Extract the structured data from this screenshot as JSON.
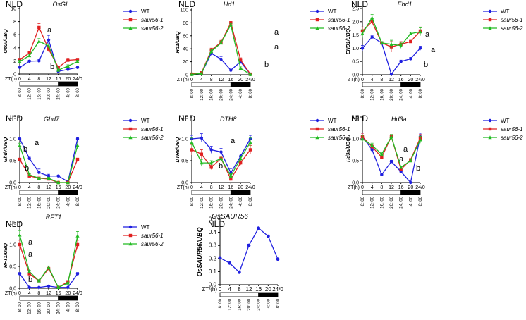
{
  "chart_data": [
    {
      "type": "line",
      "condition": "NLD",
      "title": "OsGI",
      "ylabel": "OsGI/UBQ",
      "ylim": [
        0,
        10
      ],
      "yticks": [
        0,
        2,
        4,
        6,
        8,
        10
      ],
      "x_label": "ZT(h)",
      "x": [
        0,
        4,
        8,
        12,
        16,
        20,
        24
      ],
      "x_tick_labels": [
        "0",
        "4",
        "8",
        "12",
        "16",
        "20",
        "24/0"
      ],
      "clock_labels": [
        "8: 00",
        "12: 00",
        "16: 00",
        "20: 00",
        "24: 00",
        "4: 00",
        "8: 00"
      ],
      "series": [
        {
          "name": "WT",
          "color": "#1f1fe0",
          "marker": "circle",
          "values": [
            1.0,
            1.95,
            2.0,
            5.2,
            0.4,
            0.7,
            1.0
          ],
          "errors": [
            0.1,
            0.15,
            0.2,
            0.7,
            0.1,
            0.1,
            0.1
          ]
        },
        {
          "name": "saur56-1",
          "color": "#e02020",
          "marker": "square",
          "values": [
            2.2,
            3.2,
            7.1,
            3.8,
            1.0,
            2.1,
            2.2
          ],
          "errors": [
            0.2,
            0.2,
            0.6,
            0.4,
            0.1,
            0.3,
            0.2
          ]
        },
        {
          "name": "saur56-2",
          "color": "#22bb22",
          "marker": "triangle",
          "values": [
            1.9,
            2.8,
            5.0,
            4.3,
            0.6,
            1.2,
            1.9
          ],
          "errors": [
            0.2,
            0.2,
            0.4,
            0.3,
            0.1,
            0.2,
            0.2
          ]
        }
      ],
      "annotations": [
        "a",
        "b"
      ]
    },
    {
      "type": "line",
      "condition": "NLD",
      "title": "Hd1",
      "ylabel": "Hd1/UBQ",
      "ylim": [
        0,
        100
      ],
      "yticks": [
        0,
        20,
        40,
        60,
        80,
        100
      ],
      "x_label": "ZT(h)",
      "x": [
        0,
        4,
        8,
        12,
        16,
        20,
        24
      ],
      "x_tick_labels": [
        "0",
        "4",
        "8",
        "12",
        "16",
        "20",
        "24/0"
      ],
      "clock_labels": [
        "8: 00",
        "12: 00",
        "16: 00",
        "20: 00",
        "24: 00",
        "4: 00",
        "8: 00"
      ],
      "series": [
        {
          "name": "WT",
          "color": "#1f1fe0",
          "marker": "circle",
          "values": [
            0.5,
            2,
            33,
            24,
            7,
            20,
            1
          ],
          "errors": [
            0.5,
            1,
            3,
            4,
            1,
            3,
            0.5
          ]
        },
        {
          "name": "saur56-1",
          "color": "#e02020",
          "marker": "square",
          "values": [
            1,
            3,
            38,
            50,
            80,
            23,
            1
          ],
          "errors": [
            0.5,
            1,
            3,
            3,
            2,
            3,
            0.5
          ]
        },
        {
          "name": "saur56-2",
          "color": "#22bb22",
          "marker": "triangle",
          "values": [
            0.5,
            2,
            36,
            49,
            77,
            10,
            0.5
          ],
          "errors": [
            0.5,
            1,
            3,
            3,
            2,
            2,
            0.5
          ]
        }
      ],
      "annotations": [
        "a",
        "a",
        "b"
      ]
    },
    {
      "type": "line",
      "condition": "NLD",
      "title": "Ehd1",
      "ylabel": "EHD1/UBQ",
      "ylim": [
        0,
        2.5
      ],
      "yticks": [
        0.0,
        0.5,
        1.0,
        1.5,
        2.0,
        2.5
      ],
      "x_label": "ZT(h)",
      "x": [
        0,
        4,
        8,
        12,
        16,
        20,
        24
      ],
      "x_tick_labels": [
        "0",
        "4",
        "8",
        "12",
        "16",
        "20",
        "24/0"
      ],
      "clock_labels": [
        "8: 00",
        "12: 00",
        "16: 00",
        "20: 00",
        "24: 00",
        "4: 00",
        "8: 00"
      ],
      "series": [
        {
          "name": "WT",
          "color": "#1f1fe0",
          "marker": "circle",
          "values": [
            1.0,
            1.42,
            1.2,
            0.02,
            0.5,
            0.6,
            1.0
          ],
          "errors": [
            0.1,
            0.05,
            0.05,
            0.02,
            0.05,
            0.05,
            0.08
          ]
        },
        {
          "name": "saur56-1",
          "color": "#e02020",
          "marker": "square",
          "values": [
            1.65,
            2.0,
            1.2,
            1.05,
            1.15,
            1.25,
            1.65
          ],
          "errors": [
            0.15,
            0.1,
            0.05,
            0.2,
            0.1,
            0.05,
            0.15
          ]
        },
        {
          "name": "saur56-2",
          "color": "#22bb22",
          "marker": "triangle",
          "values": [
            1.55,
            2.15,
            1.2,
            1.15,
            1.1,
            1.55,
            1.62
          ],
          "errors": [
            0.15,
            0.12,
            0.05,
            0.15,
            0.1,
            0.05,
            0.15
          ]
        }
      ],
      "annotations": [
        "a",
        "a",
        "b"
      ]
    },
    {
      "type": "line",
      "condition": "NLD",
      "title": "Ghd7",
      "ylabel": "Ghd7/UBQ",
      "ylim": [
        0,
        1.5
      ],
      "yticks": [
        0.0,
        0.5,
        1.0,
        1.5
      ],
      "x_label": "ZT(h)",
      "x": [
        0,
        4,
        8,
        12,
        16,
        20,
        24
      ],
      "x_tick_labels": [
        "0",
        "4",
        "8",
        "12",
        "16",
        "20",
        "24/0"
      ],
      "clock_labels": [
        "8: 00",
        "12: 00",
        "16: 00",
        "20: 00",
        "24: 00",
        "4: 00",
        "8: 00"
      ],
      "series": [
        {
          "name": "WT",
          "color": "#1f1fe0",
          "marker": "circle",
          "values": [
            1.0,
            0.55,
            0.23,
            0.15,
            0.15,
            0.02,
            1.0
          ],
          "errors": [
            0.03,
            0.03,
            0.08,
            0.04,
            0.02,
            0.01,
            0.03
          ]
        },
        {
          "name": "saur56-1",
          "color": "#e02020",
          "marker": "square",
          "values": [
            0.53,
            0.15,
            0.1,
            0.08,
            0.0,
            0.0,
            0.53
          ],
          "errors": [
            0.03,
            0.02,
            0.02,
            0.02,
            0.01,
            0.01,
            0.03
          ]
        },
        {
          "name": "saur56-2",
          "color": "#22bb22",
          "marker": "triangle",
          "values": [
            0.85,
            0.18,
            0.1,
            0.1,
            0.0,
            0.0,
            0.85
          ],
          "errors": [
            0.05,
            0.02,
            0.02,
            0.02,
            0.01,
            0.01,
            0.08
          ]
        }
      ],
      "annotations": [
        "a",
        "b",
        "b"
      ]
    },
    {
      "type": "line",
      "condition": "NLD",
      "title": "DTH8",
      "ylabel": "DTH8/UBQ",
      "ylim": [
        0,
        1.5
      ],
      "yticks": [
        0.0,
        0.5,
        1.0,
        1.5
      ],
      "x_label": "ZT(h)",
      "x": [
        0,
        4,
        8,
        12,
        16,
        20,
        24
      ],
      "x_tick_labels": [
        "0",
        "4",
        "8",
        "12",
        "16",
        "20",
        "24/0"
      ],
      "clock_labels": [
        "8: 00",
        "12: 00",
        "16: 00",
        "20: 00",
        "24: 00",
        "4: 00",
        "8: 00"
      ],
      "series": [
        {
          "name": "WT",
          "color": "#1f1fe0",
          "marker": "circle",
          "values": [
            1.0,
            1.02,
            0.75,
            0.7,
            0.22,
            0.6,
            1.0
          ],
          "errors": [
            0.08,
            0.1,
            0.08,
            0.08,
            0.1,
            0.05,
            0.08
          ]
        },
        {
          "name": "saur56-1",
          "color": "#e02020",
          "marker": "square",
          "values": [
            0.75,
            0.65,
            0.35,
            0.55,
            0.08,
            0.45,
            0.75
          ],
          "errors": [
            0.12,
            0.1,
            0.05,
            0.05,
            0.05,
            0.05,
            0.1
          ]
        },
        {
          "name": "saur56-2",
          "color": "#22bb22",
          "marker": "triangle",
          "values": [
            0.92,
            0.45,
            0.45,
            0.55,
            0.15,
            0.55,
            0.92
          ],
          "errors": [
            0.1,
            0.08,
            0.05,
            0.05,
            0.05,
            0.05,
            0.1
          ]
        }
      ],
      "annotations": [
        "a",
        "b"
      ]
    },
    {
      "type": "line",
      "condition": "NLD",
      "title": "Hd3a",
      "ylabel": "Hd3a/UBQ",
      "ylim": [
        0,
        1.5
      ],
      "yticks": [
        0.0,
        0.5,
        1.0,
        1.5
      ],
      "x_label": "ZT(h)",
      "x": [
        0,
        4,
        8,
        12,
        16,
        20,
        24
      ],
      "x_tick_labels": [
        "0",
        "4",
        "8",
        "12",
        "16",
        "20",
        "24/0"
      ],
      "clock_labels": [
        "8: 00",
        "12: 00",
        "16: 00",
        "20: 00",
        "24: 00",
        "4: 00",
        "8: 00"
      ],
      "series": [
        {
          "name": "WT",
          "color": "#1f1fe0",
          "marker": "circle",
          "values": [
            1.05,
            0.75,
            0.18,
            0.48,
            0.25,
            0.0,
            1.05
          ],
          "errors": [
            0.08,
            0.05,
            0.02,
            0.03,
            0.03,
            0.01,
            0.08
          ]
        },
        {
          "name": "saur56-1",
          "color": "#e02020",
          "marker": "square",
          "values": [
            1.05,
            0.82,
            0.58,
            1.05,
            0.3,
            0.52,
            1.02
          ],
          "errors": [
            0.08,
            0.05,
            0.03,
            0.05,
            0.03,
            0.03,
            0.08
          ]
        },
        {
          "name": "saur56-2",
          "color": "#22bb22",
          "marker": "triangle",
          "values": [
            1.0,
            0.85,
            0.65,
            1.05,
            0.35,
            0.5,
            0.98
          ],
          "errors": [
            0.08,
            0.05,
            0.03,
            0.05,
            0.03,
            0.03,
            0.08
          ]
        }
      ],
      "annotations": [
        "a",
        "a",
        "b"
      ]
    },
    {
      "type": "line",
      "condition": "NLD",
      "title": "RFT1",
      "ylabel": "RFT1/UBQ",
      "ylim": [
        0,
        1.5
      ],
      "yticks": [
        0.0,
        0.5,
        1.0,
        1.5
      ],
      "x_label": "ZT(h)",
      "x": [
        0,
        4,
        8,
        12,
        16,
        20,
        24
      ],
      "x_tick_labels": [
        "0",
        "4",
        "8",
        "12",
        "16",
        "20",
        "24/0"
      ],
      "clock_labels": [
        "8: 00",
        "12: 00",
        "16: 00",
        "20: 00",
        "24: 00",
        "4: 00",
        "8: 00"
      ],
      "series": [
        {
          "name": "WT",
          "color": "#1f1fe0",
          "marker": "circle",
          "values": [
            0.33,
            0.02,
            0.02,
            0.05,
            0.02,
            0.02,
            0.33
          ],
          "errors": [
            0.03,
            0.01,
            0.01,
            0.01,
            0.01,
            0.01,
            0.03
          ]
        },
        {
          "name": "saur56-1",
          "color": "#e02020",
          "marker": "square",
          "values": [
            1.0,
            0.33,
            0.17,
            0.45,
            0.02,
            0.15,
            1.0
          ],
          "errors": [
            0.1,
            0.03,
            0.02,
            0.03,
            0.01,
            0.02,
            0.1
          ]
        },
        {
          "name": "saur56-2",
          "color": "#22bb22",
          "marker": "triangle",
          "values": [
            1.22,
            0.38,
            0.17,
            0.48,
            0.02,
            0.12,
            1.2
          ],
          "errors": [
            0.1,
            0.03,
            0.02,
            0.03,
            0.01,
            0.02,
            0.1
          ]
        }
      ],
      "annotations": [
        "a",
        "a",
        "b"
      ]
    },
    {
      "type": "line",
      "condition": "NLD",
      "title": "OsSAUR56",
      "ylabel": "OsSAUR56/UBQ",
      "ylim": [
        0,
        0.5
      ],
      "yticks": [
        0.0,
        0.1,
        0.2,
        0.3,
        0.4,
        0.5
      ],
      "x_label": "ZT/(h)",
      "x": [
        0,
        4,
        8,
        12,
        16,
        20,
        24
      ],
      "x_tick_labels": [
        "0",
        "4",
        "8",
        "12",
        "16",
        "20",
        "24/0"
      ],
      "clock_labels": [
        "8: 00",
        "12: 00",
        "16: 00",
        "20: 00",
        "24: 00",
        "4: 00",
        "8: 00"
      ],
      "series": [
        {
          "name": "OsSAUR56",
          "color": "#1f1fe0",
          "marker": "circle",
          "values": [
            0.205,
            0.165,
            0.095,
            0.3,
            0.432,
            0.37,
            0.195
          ],
          "errors": [
            0.005,
            0.005,
            0.01,
            0.01,
            0.005,
            0.005,
            0.005
          ]
        }
      ],
      "annotations": []
    }
  ]
}
